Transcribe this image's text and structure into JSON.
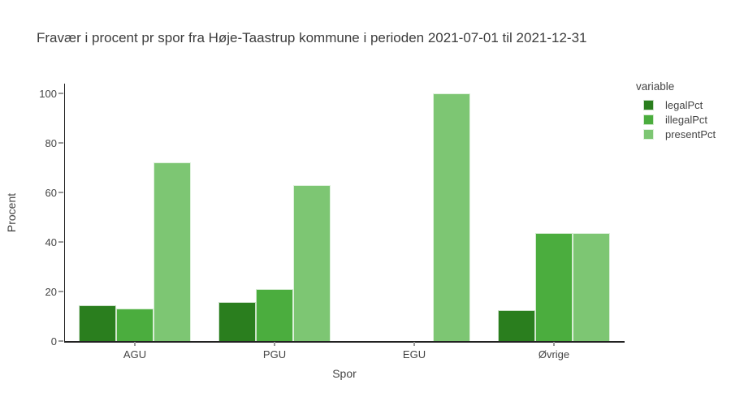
{
  "header": {
    "title": "Fravær i procent pr spor fra Høje-Taastrup kommune i perioden 2021-07-01 til 2021-12-31"
  },
  "chart_data": {
    "type": "bar",
    "title": "Fravær i procent pr spor fra Høje-Taastrup kommune i perioden 2021-07-01 til 2021-12-31",
    "xlabel": "Spor",
    "ylabel": "Procent",
    "categories": [
      "AGU",
      "PGU",
      "EGU",
      "Øvrige"
    ],
    "series": [
      {
        "name": "legalPct",
        "color": "#2a7e1e",
        "values": [
          14.3,
          15.6,
          0,
          12.4
        ]
      },
      {
        "name": "illegalPct",
        "color": "#4bad3e",
        "values": [
          13.2,
          20.9,
          0,
          43.6
        ]
      },
      {
        "name": "presentPct",
        "color": "#7dc673",
        "values": [
          72.2,
          63.0,
          100,
          43.6
        ]
      }
    ],
    "ylim": [
      0,
      100
    ],
    "yticks": [
      0,
      20,
      40,
      60,
      80,
      100
    ],
    "grid": false,
    "legend_title": "variable",
    "legend_position": "right",
    "colors": {
      "axis_line": "#222222",
      "tick_mark": "#999999",
      "text": "#444444",
      "background": "#ffffff"
    }
  }
}
